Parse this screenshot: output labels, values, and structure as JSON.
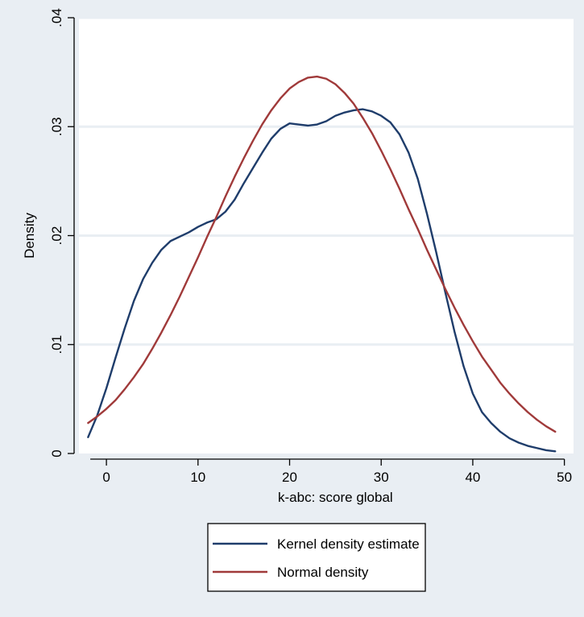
{
  "chart_data": {
    "type": "line",
    "xlabel": "k-abc: score global",
    "ylabel": "Density",
    "xlim": [
      -3,
      51
    ],
    "ylim": [
      0,
      0.04
    ],
    "x_ticks": [
      0,
      10,
      20,
      30,
      40,
      50
    ],
    "x_tick_labels": [
      "0",
      "10",
      "20",
      "30",
      "40",
      "50"
    ],
    "y_ticks": [
      0,
      0.01,
      0.02,
      0.03,
      0.04
    ],
    "y_tick_labels": [
      "0",
      ".01",
      ".02",
      ".03",
      ".04"
    ],
    "grid": true,
    "legend_position": "bottom-center",
    "series": [
      {
        "name": "Kernel density estimate",
        "color": "#1f3d6b",
        "x": [
          -2,
          -1,
          0,
          1,
          2,
          3,
          4,
          5,
          6,
          7,
          8,
          9,
          10,
          11,
          12,
          13,
          14,
          15,
          16,
          17,
          18,
          19,
          20,
          21,
          22,
          23,
          24,
          25,
          26,
          27,
          28,
          29,
          30,
          31,
          32,
          33,
          34,
          35,
          36,
          37,
          38,
          39,
          40,
          41,
          42,
          43,
          44,
          45,
          46,
          47,
          48,
          49
        ],
        "y": [
          0.0015,
          0.0035,
          0.006,
          0.0088,
          0.0115,
          0.014,
          0.016,
          0.0175,
          0.0187,
          0.0195,
          0.0199,
          0.0203,
          0.0208,
          0.0212,
          0.0215,
          0.0222,
          0.0233,
          0.0248,
          0.0262,
          0.0276,
          0.0289,
          0.0298,
          0.0303,
          0.0302,
          0.0301,
          0.0302,
          0.0305,
          0.031,
          0.0313,
          0.0315,
          0.0316,
          0.0314,
          0.031,
          0.0304,
          0.0293,
          0.0276,
          0.0252,
          0.022,
          0.0185,
          0.0148,
          0.0112,
          0.008,
          0.0055,
          0.0038,
          0.0028,
          0.002,
          0.0014,
          0.001,
          0.0007,
          0.0005,
          0.0003,
          0.0002
        ]
      },
      {
        "name": "Normal density",
        "color": "#a03a3a",
        "x": [
          -2,
          -1,
          0,
          1,
          2,
          3,
          4,
          5,
          6,
          7,
          8,
          9,
          10,
          11,
          12,
          13,
          14,
          15,
          16,
          17,
          18,
          19,
          20,
          21,
          22,
          23,
          24,
          25,
          26,
          27,
          28,
          29,
          30,
          31,
          32,
          33,
          34,
          35,
          36,
          37,
          38,
          39,
          40,
          41,
          42,
          43,
          44,
          45,
          46,
          47,
          48,
          49
        ],
        "y": [
          0.0028,
          0.0034,
          0.0041,
          0.0049,
          0.0059,
          0.007,
          0.0082,
          0.0096,
          0.0111,
          0.0127,
          0.0144,
          0.0162,
          0.018,
          0.0199,
          0.0217,
          0.0236,
          0.0254,
          0.0271,
          0.0287,
          0.0302,
          0.0315,
          0.0326,
          0.0335,
          0.0341,
          0.0345,
          0.0346,
          0.0344,
          0.0339,
          0.0331,
          0.0321,
          0.0308,
          0.0294,
          0.0278,
          0.0261,
          0.0243,
          0.0224,
          0.0206,
          0.0187,
          0.0169,
          0.0151,
          0.0134,
          0.0118,
          0.0103,
          0.0089,
          0.0077,
          0.0065,
          0.0055,
          0.0046,
          0.0038,
          0.0031,
          0.0025,
          0.002
        ]
      }
    ]
  }
}
